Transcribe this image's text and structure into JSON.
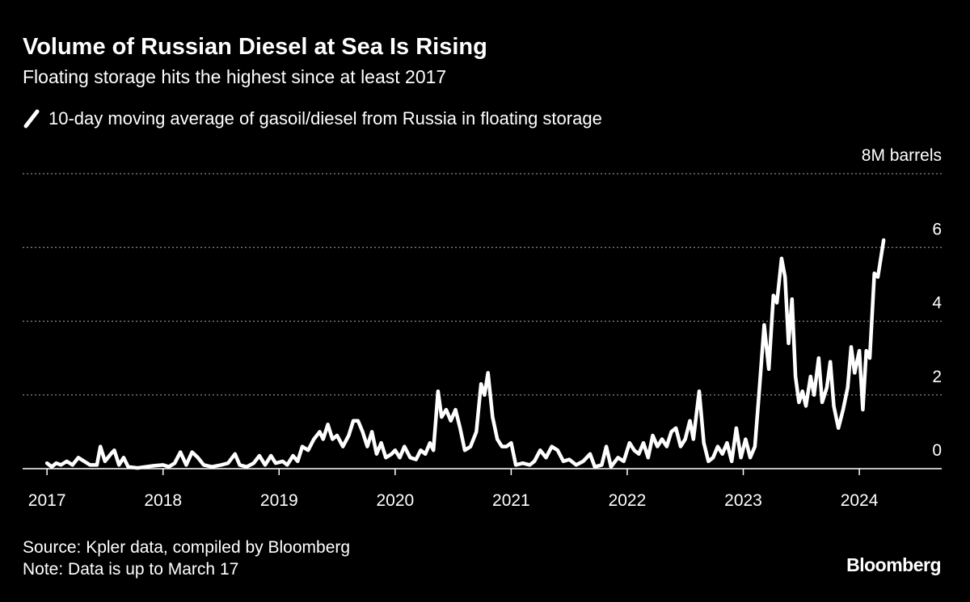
{
  "chart_data": {
    "type": "line",
    "title": "Volume of Russian Diesel at Sea Is Rising",
    "subtitle": "Floating storage hits the highest since at least 2017",
    "source": "Source: Kpler data, compiled by Bloomberg",
    "note": "Note: Data is up to March 17",
    "brand": "Bloomberg",
    "x": [
      2017.0,
      2017.04,
      2017.08,
      2017.12,
      2017.17,
      2017.22,
      2017.27,
      2017.32,
      2017.37,
      2017.43,
      2017.46,
      2017.5,
      2017.55,
      2017.58,
      2017.62,
      2017.66,
      2017.7,
      2017.78,
      2017.85,
      2017.92,
      2018.0,
      2018.05,
      2018.1,
      2018.15,
      2018.2,
      2018.25,
      2018.3,
      2018.35,
      2018.42,
      2018.5,
      2018.56,
      2018.62,
      2018.66,
      2018.72,
      2018.78,
      2018.83,
      2018.88,
      2018.93,
      2018.97,
      2019.03,
      2019.07,
      2019.12,
      2019.16,
      2019.2,
      2019.25,
      2019.3,
      2019.35,
      2019.38,
      2019.42,
      2019.46,
      2019.5,
      2019.55,
      2019.6,
      2019.64,
      2019.68,
      2019.72,
      2019.76,
      2019.8,
      2019.84,
      2019.88,
      2019.92,
      2019.97,
      2020.0,
      2020.04,
      2020.08,
      2020.13,
      2020.18,
      2020.22,
      2020.26,
      2020.3,
      2020.33,
      2020.37,
      2020.4,
      2020.44,
      2020.48,
      2020.52,
      2020.56,
      2020.6,
      2020.65,
      2020.7,
      2020.74,
      2020.77,
      2020.8,
      2020.84,
      2020.88,
      2020.92,
      2020.96,
      2021.0,
      2021.04,
      2021.1,
      2021.16,
      2021.2,
      2021.25,
      2021.3,
      2021.35,
      2021.4,
      2021.45,
      2021.5,
      2021.56,
      2021.62,
      2021.68,
      2021.72,
      2021.78,
      2021.82,
      2021.86,
      2021.92,
      2021.97,
      2022.02,
      2022.06,
      2022.1,
      2022.14,
      2022.18,
      2022.22,
      2022.26,
      2022.3,
      2022.34,
      2022.38,
      2022.42,
      2022.46,
      2022.5,
      2022.54,
      2022.57,
      2022.62,
      2022.66,
      2022.7,
      2022.74,
      2022.78,
      2022.82,
      2022.86,
      2022.9,
      2022.94,
      2022.98,
      2023.02,
      2023.06,
      2023.1,
      2023.14,
      2023.18,
      2023.22,
      2023.26,
      2023.29,
      2023.33,
      2023.36,
      2023.39,
      2023.42,
      2023.45,
      2023.48,
      2023.51,
      2023.54,
      2023.58,
      2023.61,
      2023.65,
      2023.68,
      2023.72,
      2023.75,
      2023.78,
      2023.82,
      2023.86,
      2023.9,
      2023.93,
      2023.96,
      2024.0,
      2024.03,
      2024.06,
      2024.09,
      2024.13,
      2024.16,
      2024.21
    ],
    "series": [
      {
        "name": "10-day moving average of gasoil/diesel from Russia in floating storage",
        "color": "#ffffff",
        "values": [
          0.15,
          0.05,
          0.15,
          0.1,
          0.2,
          0.1,
          0.3,
          0.2,
          0.1,
          0.1,
          0.6,
          0.2,
          0.4,
          0.5,
          0.1,
          0.3,
          0.05,
          0.02,
          0.05,
          0.08,
          0.1,
          0.05,
          0.15,
          0.45,
          0.1,
          0.45,
          0.3,
          0.1,
          0.05,
          0.1,
          0.15,
          0.4,
          0.1,
          0.05,
          0.15,
          0.35,
          0.1,
          0.35,
          0.15,
          0.2,
          0.1,
          0.35,
          0.2,
          0.6,
          0.5,
          0.8,
          1.0,
          0.8,
          1.2,
          0.8,
          0.9,
          0.6,
          0.9,
          1.3,
          1.3,
          1.0,
          0.6,
          1.0,
          0.4,
          0.7,
          0.3,
          0.4,
          0.5,
          0.3,
          0.6,
          0.3,
          0.25,
          0.5,
          0.4,
          0.7,
          0.5,
          2.1,
          1.4,
          1.6,
          1.3,
          1.6,
          1.1,
          0.5,
          0.6,
          1.0,
          2.3,
          2.0,
          2.6,
          1.4,
          0.8,
          0.6,
          0.6,
          0.7,
          0.1,
          0.15,
          0.1,
          0.2,
          0.5,
          0.3,
          0.6,
          0.5,
          0.2,
          0.25,
          0.1,
          0.2,
          0.4,
          0.05,
          0.1,
          0.6,
          0.05,
          0.3,
          0.2,
          0.7,
          0.5,
          0.4,
          0.7,
          0.3,
          0.9,
          0.6,
          0.8,
          0.6,
          1.0,
          1.1,
          0.6,
          0.8,
          1.3,
          0.8,
          2.1,
          0.7,
          0.2,
          0.3,
          0.6,
          0.4,
          0.7,
          0.2,
          1.1,
          0.3,
          0.8,
          0.3,
          0.6,
          2.2,
          3.9,
          2.7,
          4.7,
          4.5,
          5.7,
          5.2,
          3.4,
          4.6,
          2.5,
          1.8,
          2.1,
          1.7,
          2.5,
          2.0,
          3.0,
          1.8,
          2.2,
          2.9,
          1.7,
          1.1,
          1.6,
          2.2,
          3.3,
          2.6,
          3.2,
          1.6,
          3.2,
          3.0,
          5.3,
          5.2,
          6.2
        ]
      }
    ],
    "xlim": [
      2016.79,
      2024.71
    ],
    "xticks": [
      2017,
      2018,
      2019,
      2020,
      2021,
      2022,
      2023,
      2024
    ],
    "ylim": [
      0,
      8
    ],
    "yticks": [
      0,
      2,
      4,
      6,
      {
        "value": 8,
        "label": "8M barrels"
      }
    ],
    "grid": true
  }
}
